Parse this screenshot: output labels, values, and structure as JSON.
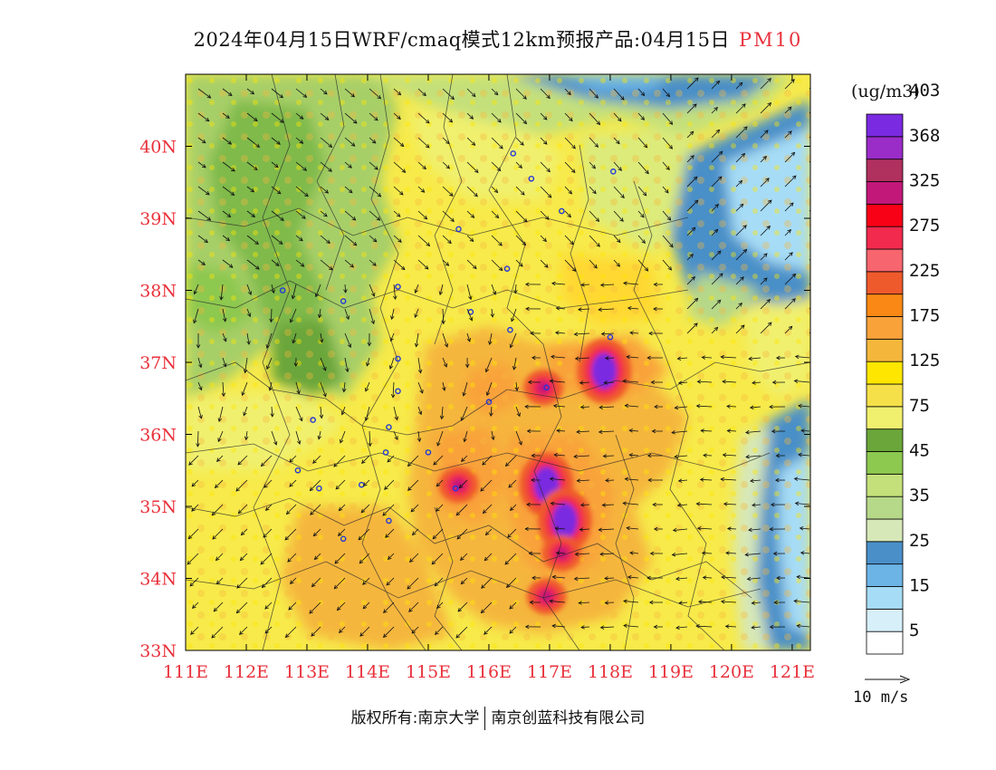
{
  "title": {
    "main": "2024年04月15日WRF/cmaq模式12km预报产品:04月15日",
    "pollutant": "PM10"
  },
  "map": {
    "lon_range": [
      111,
      121.3
    ],
    "lat_range": [
      33,
      41
    ],
    "lon_ticks": [
      "111E",
      "112E",
      "113E",
      "114E",
      "115E",
      "116E",
      "117E",
      "118E",
      "119E",
      "120E",
      "121E"
    ],
    "lat_ticks": [
      "33N",
      "34N",
      "35N",
      "36N",
      "37N",
      "38N",
      "39N",
      "40N"
    ],
    "axis_label_color": "#e8323c"
  },
  "legend": {
    "unit": "(ug/m3)",
    "colors": [
      "#ffffff",
      "#d6eff8",
      "#a6dcf5",
      "#6cb4e6",
      "#4a8fc8",
      "#d7e8b8",
      "#b6d889",
      "#c4e07a",
      "#8dc84f",
      "#6aa63a",
      "#f0f06e",
      "#f5e04a",
      "#ffe600",
      "#f5b63c",
      "#f9a23a",
      "#fa8814",
      "#ef5a2c",
      "#f7656e",
      "#f22a4e",
      "#f80016",
      "#c2187a",
      "#b0305e",
      "#9a2cc8",
      "#7a2ae0"
    ],
    "labels": [
      "5",
      "15",
      "25",
      "35",
      "45",
      "75",
      "125",
      "175",
      "225",
      "275",
      "325",
      "368",
      "403"
    ]
  },
  "wind_reference": {
    "label": "10 m/s"
  },
  "copyright": {
    "owner": "版权所有:南京大学",
    "partner": "南京创蓝科技有限公司"
  },
  "hotspots": [
    {
      "lon": 116.95,
      "lat": 35.3,
      "level": "max"
    },
    {
      "lon": 117.25,
      "lat": 34.8,
      "level": "max"
    },
    {
      "lon": 117.9,
      "lat": 36.88,
      "level": "max"
    },
    {
      "lon": 115.5,
      "lat": 35.3,
      "level": "high"
    },
    {
      "lon": 116.9,
      "lat": 36.65,
      "level": "high"
    },
    {
      "lon": 116.95,
      "lat": 33.75,
      "level": "high"
    },
    {
      "lon": 117.2,
      "lat": 34.35,
      "level": "high"
    }
  ],
  "city_markers": [
    [
      116.4,
      39.9
    ],
    [
      117.2,
      39.1
    ],
    [
      116.7,
      39.55
    ],
    [
      115.5,
      38.85
    ],
    [
      116.3,
      38.3
    ],
    [
      114.5,
      38.05
    ],
    [
      113.6,
      37.85
    ],
    [
      112.6,
      38.0
    ],
    [
      115.7,
      37.7
    ],
    [
      116.35,
      37.45
    ],
    [
      118.0,
      37.35
    ],
    [
      114.5,
      37.05
    ],
    [
      114.5,
      36.6
    ],
    [
      113.1,
      36.2
    ],
    [
      114.35,
      36.1
    ],
    [
      114.3,
      35.75
    ],
    [
      115.0,
      35.75
    ],
    [
      112.85,
      35.5
    ],
    [
      113.2,
      35.25
    ],
    [
      113.9,
      35.3
    ],
    [
      114.35,
      34.8
    ],
    [
      113.6,
      34.55
    ],
    [
      116.0,
      36.45
    ],
    [
      116.95,
      36.65
    ],
    [
      115.45,
      35.25
    ],
    [
      118.05,
      39.65
    ]
  ]
}
